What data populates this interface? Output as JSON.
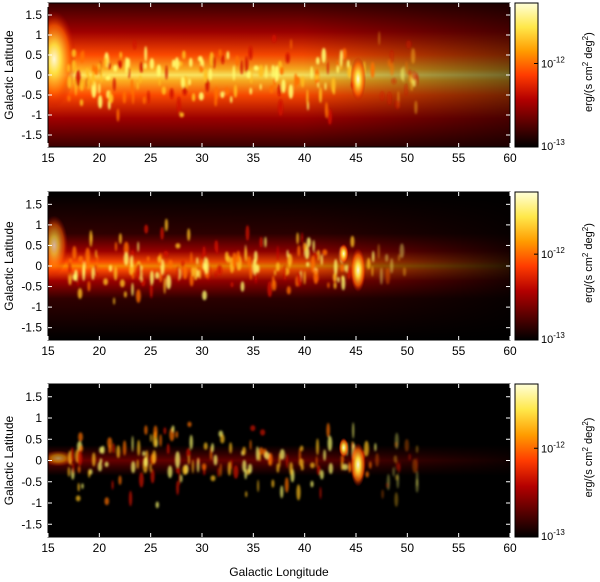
{
  "chart_data": [
    {
      "type": "heatmap",
      "panel": "top",
      "xlabel": "",
      "ylabel": "Galactic Latitude",
      "xlim": [
        15,
        60
      ],
      "ylim": [
        -1.8,
        1.8
      ],
      "x_ticks": [
        "15",
        "20",
        "25",
        "30",
        "35",
        "40",
        "45",
        "50",
        "55",
        "60"
      ],
      "y_ticks": [
        "1.5",
        "1",
        "0.5",
        "0",
        "-0.5",
        "-1",
        "-1.5"
      ],
      "colorbar": {
        "label": "erg/(s cm² deg²)",
        "label_base": "erg/(s cm",
        "label_mid": " deg",
        "label_end": ")",
        "sup": "2",
        "max_label": "10",
        "max_exp": "-12",
        "min_label": "10",
        "min_exp": "-13",
        "scale": "log"
      },
      "background_level": 0.55,
      "bright_sources_longitude": [
        45.2,
        16.2
      ],
      "colormap": [
        "#000000",
        "#5a0000",
        "#b40000",
        "#ff3c00",
        "#ff9c00",
        "#ffe84a",
        "#ffffd8"
      ]
    },
    {
      "type": "heatmap",
      "panel": "middle",
      "xlabel": "",
      "ylabel": "Galactic Latitude",
      "xlim": [
        15,
        60
      ],
      "ylim": [
        -1.8,
        1.8
      ],
      "x_ticks": [
        "15",
        "20",
        "25",
        "30",
        "35",
        "40",
        "45",
        "50",
        "55",
        "60"
      ],
      "y_ticks": [
        "1.5",
        "1",
        "0.5",
        "0",
        "-0.5",
        "-1",
        "-1.5"
      ],
      "colorbar": {
        "label": "erg/(s cm² deg²)",
        "label_base": "erg/(s cm",
        "label_mid": " deg",
        "label_end": ")",
        "sup": "2",
        "max_label": "10",
        "max_exp": "-12",
        "min_label": "10",
        "min_exp": "-13",
        "scale": "log"
      },
      "background_level": 0.3,
      "bright_sources_longitude": [
        45.2,
        43.8,
        16.0
      ],
      "colormap": [
        "#000000",
        "#5a0000",
        "#b40000",
        "#ff3c00",
        "#ff9c00",
        "#ffe84a",
        "#ffffd8"
      ]
    },
    {
      "type": "heatmap",
      "panel": "bottom",
      "xlabel": "Galactic Longitude",
      "ylabel": "Galactic Latitude",
      "xlim": [
        15,
        60
      ],
      "ylim": [
        -1.8,
        1.8
      ],
      "x_ticks": [
        "15",
        "20",
        "25",
        "30",
        "35",
        "40",
        "45",
        "50",
        "55",
        "60"
      ],
      "y_ticks": [
        "1.5",
        "1",
        "0.5",
        "0",
        "-0.5",
        "-1",
        "-1.5"
      ],
      "colorbar": {
        "label": "erg/(s cm² deg²)",
        "label_base": "erg/(s cm",
        "label_mid": " deg",
        "label_end": ")",
        "sup": "2",
        "max_label": "10",
        "max_exp": "-12",
        "min_label": "10",
        "min_exp": "-13",
        "scale": "log"
      },
      "background_level": 0.1,
      "bright_sources_longitude": [
        45.2,
        43.8
      ],
      "colormap": [
        "#000000",
        "#5a0000",
        "#b40000",
        "#ff3c00",
        "#ff9c00",
        "#ffe84a",
        "#ffffd8"
      ]
    }
  ]
}
